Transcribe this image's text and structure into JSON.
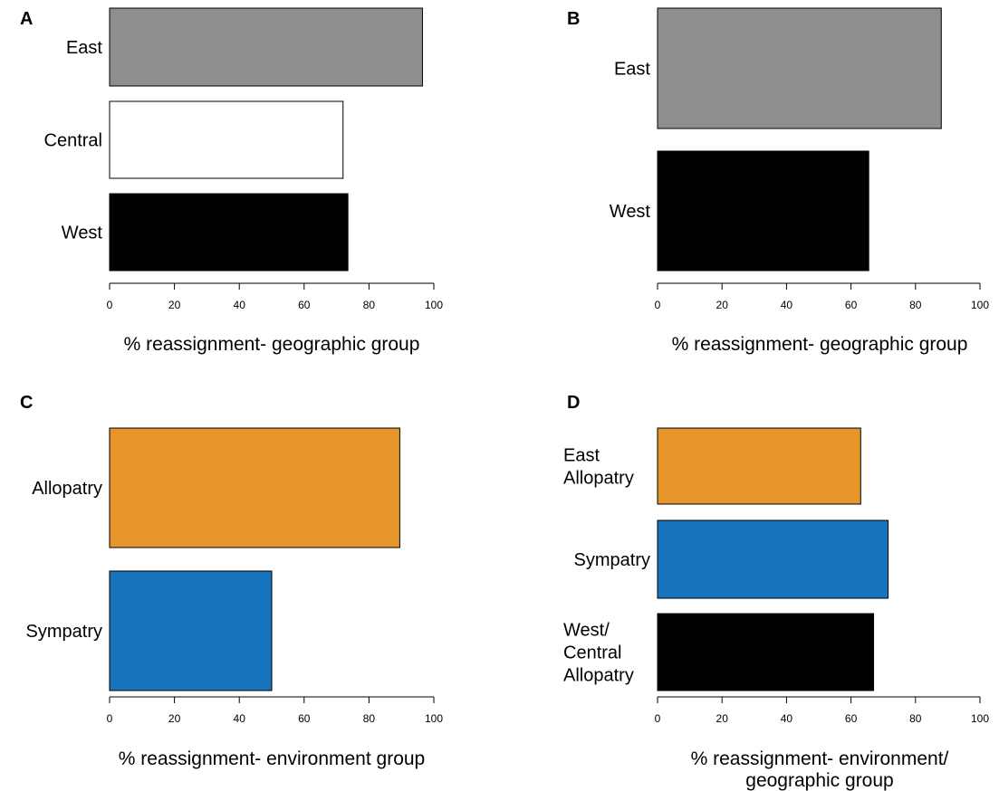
{
  "chart_data": [
    {
      "panel": "A",
      "type": "bar",
      "orientation": "horizontal",
      "categories": [
        "East",
        "Central",
        "West"
      ],
      "values": [
        96.5,
        72,
        73.5
      ],
      "colors": [
        "#8e8e91",
        "#ffffff",
        "#000000"
      ],
      "xlabel": [
        "% reassignment- geographic group"
      ],
      "xlim": [
        0,
        100
      ],
      "xticks": [
        0,
        20,
        40,
        60,
        80,
        100
      ],
      "grid": false
    },
    {
      "panel": "B",
      "type": "bar",
      "orientation": "horizontal",
      "categories": [
        "East",
        "West"
      ],
      "values": [
        88,
        65.5
      ],
      "colors": [
        "#8e8e91",
        "#000000"
      ],
      "xlabel": [
        "% reassignment- geographic group"
      ],
      "xlim": [
        0,
        100
      ],
      "xticks": [
        0,
        20,
        40,
        60,
        80,
        100
      ],
      "grid": false
    },
    {
      "panel": "C",
      "type": "bar",
      "orientation": "horizontal",
      "categories": [
        "Allopatry",
        "Sympatry"
      ],
      "values": [
        89.5,
        50
      ],
      "colors": [
        "#e6952a",
        "#1874bd"
      ],
      "xlabel": [
        "% reassignment- environment group"
      ],
      "xlim": [
        0,
        100
      ],
      "xticks": [
        0,
        20,
        40,
        60,
        80,
        100
      ],
      "grid": false
    },
    {
      "panel": "D",
      "type": "bar",
      "orientation": "horizontal",
      "categories": [
        "East\nAllopatry",
        "Sympatry",
        "West/\nCentral\nAllopatry"
      ],
      "values": [
        63,
        71.5,
        67
      ],
      "colors": [
        "#e6952a",
        "#1874bd",
        "#000000"
      ],
      "xlabel": [
        "% reassignment- environment/",
        "geographic group"
      ],
      "xlim": [
        0,
        100
      ],
      "xticks": [
        0,
        20,
        40,
        60,
        80,
        100
      ],
      "grid": false
    }
  ]
}
